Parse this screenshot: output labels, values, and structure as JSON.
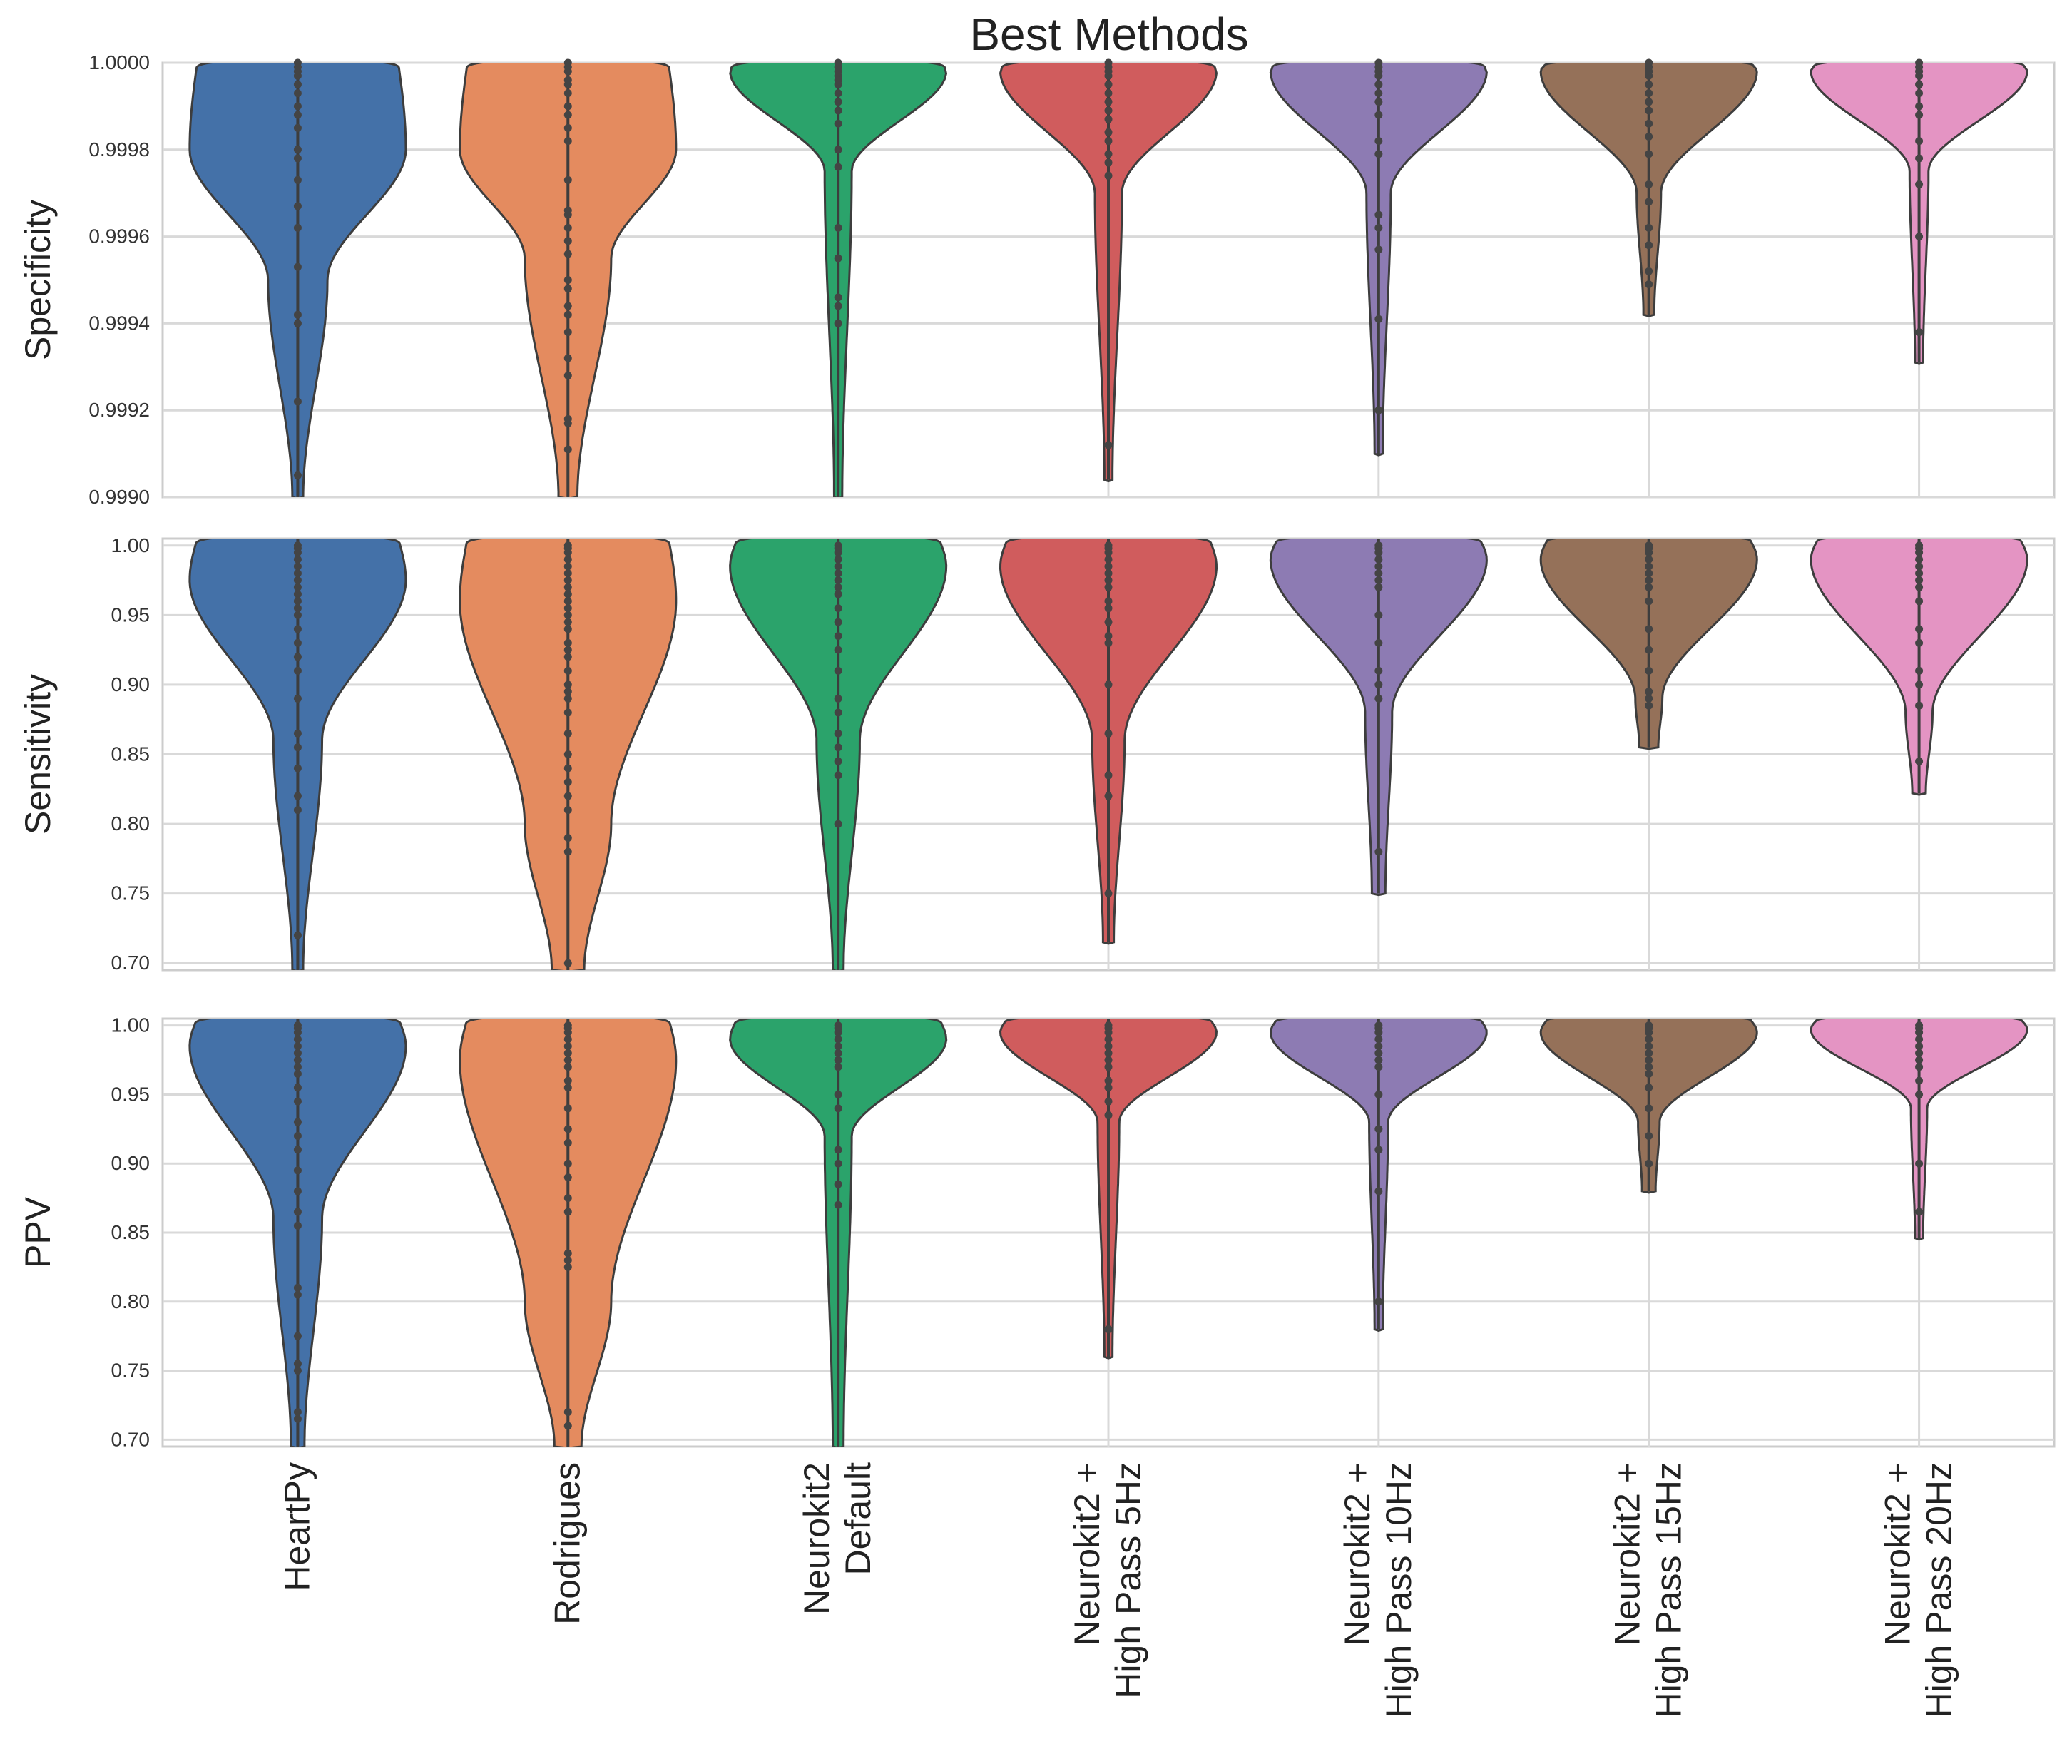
{
  "chart_data": {
    "type": "violin",
    "title": "Best Methods",
    "categories": [
      {
        "lines": [
          "HeartPy"
        ]
      },
      {
        "lines": [
          "Rodrigues"
        ]
      },
      {
        "lines": [
          "Neurokit2",
          "Default"
        ]
      },
      {
        "lines": [
          "Neurokit2 +",
          "High Pass 5Hz"
        ]
      },
      {
        "lines": [
          "Neurokit2 +",
          "High Pass 10Hz"
        ]
      },
      {
        "lines": [
          "Neurokit2 +",
          "High Pass 15Hz"
        ]
      },
      {
        "lines": [
          "Neurokit2 +",
          "High Pass 20Hz"
        ]
      }
    ],
    "colors": [
      "#4471a8",
      "#e48b5f",
      "#2ba36b",
      "#d05c5d",
      "#8d7bb3",
      "#957159",
      "#e494c3"
    ],
    "grid": true,
    "panels": [
      {
        "ylabel": "Specificity",
        "ylim": [
          0.999,
          1.0
        ],
        "ytick_values": [
          0.999,
          0.9992,
          0.9994,
          0.9996,
          0.9998,
          1.0
        ],
        "ytick_labels": [
          "0.9990",
          "0.9992",
          "0.9994",
          "0.9996",
          "0.9998",
          "1.0000"
        ],
        "violins": [
          {
            "min": 0.999,
            "bulge": 0.9998,
            "tail": 0.9995,
            "w_max": 0.8,
            "w_mid": 0.22,
            "w_tail": 0.04,
            "points": [
              1.0,
              0.99999,
              0.99998,
              0.99997,
              0.99995,
              0.99993,
              0.9999,
              0.99988,
              0.99985,
              0.9998,
              0.99978,
              0.99973,
              0.99967,
              0.99962,
              0.99953,
              0.99942,
              0.9994,
              0.99922,
              0.99905
            ]
          },
          {
            "min": 0.999,
            "bulge": 0.9998,
            "tail": 0.99955,
            "w_max": 0.8,
            "w_mid": 0.32,
            "w_tail": 0.07,
            "points": [
              1.0,
              0.99999,
              0.99998,
              0.99996,
              0.99995,
              0.99993,
              0.9999,
              0.99988,
              0.99985,
              0.99982,
              0.99973,
              0.99966,
              0.99965,
              0.99962,
              0.99959,
              0.99956,
              0.9995,
              0.99948,
              0.99944,
              0.99942,
              0.99938,
              0.99932,
              0.99928,
              0.99918,
              0.99917,
              0.99911
            ]
          },
          {
            "min": 0.999,
            "bulge": 0.99998,
            "tail": 0.99975,
            "w_max": 0.8,
            "w_mid": 0.1,
            "w_tail": 0.03,
            "points": [
              1.0,
              0.99999,
              0.99998,
              0.99997,
              0.99996,
              0.99995,
              0.99993,
              0.99991,
              0.99989,
              0.99986,
              0.9998,
              0.99976,
              0.99962,
              0.99955,
              0.99946,
              0.99944,
              0.9994
            ]
          },
          {
            "min": 0.99904,
            "bulge": 0.99998,
            "tail": 0.9997,
            "w_max": 0.8,
            "w_mid": 0.1,
            "w_tail": 0.03,
            "points": [
              1.0,
              0.99999,
              0.99998,
              0.99997,
              0.99995,
              0.99993,
              0.99991,
              0.99989,
              0.99987,
              0.99984,
              0.99982,
              0.99979,
              0.99977,
              0.99974,
              0.99912
            ]
          },
          {
            "min": 0.9991,
            "bulge": 0.99998,
            "tail": 0.9997,
            "w_max": 0.8,
            "w_mid": 0.09,
            "w_tail": 0.03,
            "points": [
              1.0,
              0.99999,
              0.99998,
              0.99997,
              0.99995,
              0.99993,
              0.99991,
              0.99988,
              0.99982,
              0.99979,
              0.99965,
              0.99962,
              0.99957,
              0.99941,
              0.9992
            ]
          },
          {
            "min": 0.99942,
            "bulge": 0.99998,
            "tail": 0.9997,
            "w_max": 0.8,
            "w_mid": 0.09,
            "w_tail": 0.04,
            "points": [
              1.0,
              0.99999,
              0.99998,
              0.99997,
              0.99995,
              0.99993,
              0.99991,
              0.99989,
              0.99986,
              0.99983,
              0.99979,
              0.99972,
              0.99968,
              0.99962,
              0.99958,
              0.99952,
              0.99949
            ]
          },
          {
            "min": 0.99931,
            "bulge": 0.99998,
            "tail": 0.99975,
            "w_max": 0.8,
            "w_mid": 0.07,
            "w_tail": 0.03,
            "points": [
              1.0,
              0.99999,
              0.99998,
              0.99997,
              0.99995,
              0.99993,
              0.9999,
              0.99988,
              0.99982,
              0.99978,
              0.99972,
              0.9996,
              0.99938
            ]
          }
        ]
      },
      {
        "ylabel": "Sensitivity",
        "ylim": [
          0.695,
          1.005
        ],
        "ytick_values": [
          0.7,
          0.75,
          0.8,
          0.85,
          0.9,
          0.95,
          1.0
        ],
        "ytick_labels": [
          "0.70",
          "0.75",
          "0.80",
          "0.85",
          "0.90",
          "0.95",
          "1.00"
        ],
        "violins": [
          {
            "min": 0.695,
            "bulge": 0.975,
            "tail": 0.86,
            "w_max": 0.8,
            "w_mid": 0.18,
            "w_tail": 0.04,
            "points": [
              1.0,
              0.998,
              0.995,
              0.99,
              0.985,
              0.98,
              0.975,
              0.97,
              0.965,
              0.96,
              0.955,
              0.95,
              0.94,
              0.93,
              0.92,
              0.91,
              0.89,
              0.865,
              0.855,
              0.84,
              0.82,
              0.81,
              0.72
            ]
          },
          {
            "min": 0.695,
            "bulge": 0.96,
            "tail": 0.8,
            "w_max": 0.8,
            "w_mid": 0.32,
            "w_tail": 0.12,
            "points": [
              1.0,
              0.998,
              0.995,
              0.99,
              0.985,
              0.98,
              0.975,
              0.97,
              0.965,
              0.96,
              0.955,
              0.95,
              0.945,
              0.94,
              0.93,
              0.925,
              0.92,
              0.91,
              0.9,
              0.895,
              0.89,
              0.88,
              0.865,
              0.85,
              0.84,
              0.83,
              0.82,
              0.81,
              0.79,
              0.78,
              0.7
            ]
          },
          {
            "min": 0.695,
            "bulge": 0.985,
            "tail": 0.86,
            "w_max": 0.8,
            "w_mid": 0.16,
            "w_tail": 0.04,
            "points": [
              1.0,
              0.998,
              0.995,
              0.99,
              0.985,
              0.98,
              0.975,
              0.97,
              0.965,
              0.955,
              0.945,
              0.935,
              0.925,
              0.91,
              0.89,
              0.88,
              0.865,
              0.855,
              0.845,
              0.835,
              0.8
            ]
          },
          {
            "min": 0.715,
            "bulge": 0.985,
            "tail": 0.86,
            "w_max": 0.8,
            "w_mid": 0.12,
            "w_tail": 0.04,
            "points": [
              1.0,
              0.998,
              0.995,
              0.99,
              0.985,
              0.98,
              0.975,
              0.97,
              0.96,
              0.955,
              0.945,
              0.935,
              0.93,
              0.9,
              0.865,
              0.835,
              0.82,
              0.75
            ]
          },
          {
            "min": 0.75,
            "bulge": 0.99,
            "tail": 0.88,
            "w_max": 0.8,
            "w_mid": 0.1,
            "w_tail": 0.05,
            "points": [
              1.0,
              0.998,
              0.995,
              0.99,
              0.985,
              0.98,
              0.975,
              0.97,
              0.95,
              0.93,
              0.91,
              0.9,
              0.89,
              0.78
            ]
          },
          {
            "min": 0.855,
            "bulge": 0.99,
            "tail": 0.89,
            "w_max": 0.8,
            "w_mid": 0.1,
            "w_tail": 0.07,
            "points": [
              1.0,
              0.998,
              0.995,
              0.99,
              0.985,
              0.98,
              0.975,
              0.97,
              0.96,
              0.94,
              0.925,
              0.91,
              0.895,
              0.89,
              0.885
            ]
          },
          {
            "min": 0.822,
            "bulge": 0.99,
            "tail": 0.88,
            "w_max": 0.8,
            "w_mid": 0.1,
            "w_tail": 0.05,
            "points": [
              1.0,
              0.998,
              0.995,
              0.99,
              0.985,
              0.98,
              0.975,
              0.97,
              0.96,
              0.94,
              0.93,
              0.91,
              0.9,
              0.885,
              0.845
            ]
          }
        ]
      },
      {
        "ylabel": "PPV",
        "ylim": [
          0.695,
          1.005
        ],
        "ytick_values": [
          0.7,
          0.75,
          0.8,
          0.85,
          0.9,
          0.95,
          1.0
        ],
        "ytick_labels": [
          "0.70",
          "0.75",
          "0.80",
          "0.85",
          "0.90",
          "0.95",
          "1.00"
        ],
        "violins": [
          {
            "min": 0.695,
            "bulge": 0.985,
            "tail": 0.86,
            "w_max": 0.8,
            "w_mid": 0.18,
            "w_tail": 0.05,
            "points": [
              1.0,
              0.998,
              0.995,
              0.99,
              0.985,
              0.98,
              0.975,
              0.97,
              0.965,
              0.955,
              0.945,
              0.93,
              0.92,
              0.91,
              0.895,
              0.88,
              0.865,
              0.855,
              0.81,
              0.805,
              0.775,
              0.755,
              0.75,
              0.72,
              0.715
            ]
          },
          {
            "min": 0.695,
            "bulge": 0.975,
            "tail": 0.8,
            "w_max": 0.8,
            "w_mid": 0.32,
            "w_tail": 0.1,
            "points": [
              1.0,
              0.998,
              0.995,
              0.99,
              0.985,
              0.98,
              0.975,
              0.97,
              0.96,
              0.955,
              0.94,
              0.925,
              0.915,
              0.9,
              0.89,
              0.875,
              0.865,
              0.835,
              0.83,
              0.825,
              0.72,
              0.71
            ]
          },
          {
            "min": 0.695,
            "bulge": 0.99,
            "tail": 0.92,
            "w_max": 0.8,
            "w_mid": 0.1,
            "w_tail": 0.04,
            "points": [
              1.0,
              0.998,
              0.995,
              0.99,
              0.985,
              0.98,
              0.975,
              0.97,
              0.95,
              0.94,
              0.91,
              0.9,
              0.885,
              0.87
            ]
          },
          {
            "min": 0.76,
            "bulge": 0.995,
            "tail": 0.93,
            "w_max": 0.8,
            "w_mid": 0.08,
            "w_tail": 0.03,
            "points": [
              1.0,
              0.998,
              0.995,
              0.99,
              0.985,
              0.98,
              0.975,
              0.97,
              0.96,
              0.955,
              0.945,
              0.935,
              0.78
            ]
          },
          {
            "min": 0.78,
            "bulge": 0.995,
            "tail": 0.93,
            "w_max": 0.8,
            "w_mid": 0.07,
            "w_tail": 0.03,
            "points": [
              1.0,
              0.998,
              0.995,
              0.99,
              0.985,
              0.98,
              0.975,
              0.97,
              0.95,
              0.925,
              0.91,
              0.88,
              0.8
            ]
          },
          {
            "min": 0.88,
            "bulge": 0.995,
            "tail": 0.93,
            "w_max": 0.8,
            "w_mid": 0.08,
            "w_tail": 0.05,
            "points": [
              1.0,
              0.998,
              0.995,
              0.99,
              0.985,
              0.98,
              0.975,
              0.97,
              0.965,
              0.955,
              0.94,
              0.92,
              0.9
            ]
          },
          {
            "min": 0.846,
            "bulge": 0.997,
            "tail": 0.94,
            "w_max": 0.8,
            "w_mid": 0.06,
            "w_tail": 0.03,
            "points": [
              1.0,
              0.998,
              0.995,
              0.99,
              0.985,
              0.98,
              0.975,
              0.97,
              0.96,
              0.95,
              0.9,
              0.865
            ]
          }
        ]
      }
    ]
  }
}
